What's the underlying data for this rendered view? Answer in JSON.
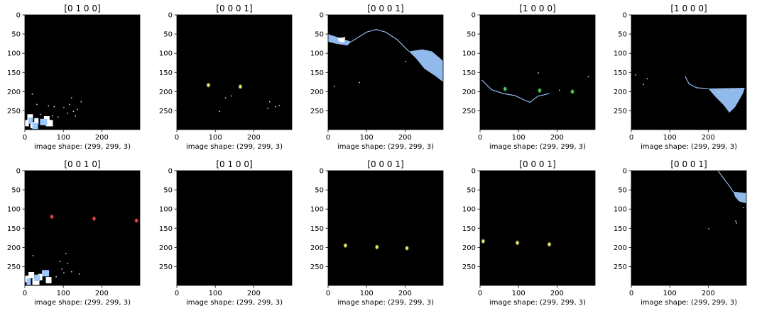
{
  "chart_data": [
    {
      "type": "image",
      "title": "[0 1 0 0]",
      "xlabel": "image shape: (299, 299, 3)",
      "xticks": [
        0,
        100,
        200
      ],
      "yticks": [
        0,
        50,
        100,
        150,
        200,
        250
      ],
      "xlim": [
        0,
        299
      ],
      "ylim": [
        299,
        0
      ],
      "background": "#000000",
      "marks": [
        {
          "kind": "blob",
          "color": "#ffffff",
          "points": [
            [
              5,
              285
            ],
            [
              12,
              270
            ],
            [
              20,
              290
            ],
            [
              30,
              280
            ],
            [
              55,
              275
            ],
            [
              60,
              285
            ]
          ]
        },
        {
          "kind": "blob",
          "color": "#9ec9ff",
          "points": [
            [
              15,
              278
            ],
            [
              25,
              292
            ],
            [
              45,
              282
            ]
          ]
        },
        {
          "kind": "speck",
          "color": "#cfe3ff",
          "points": [
            [
              100,
              240
            ],
            [
              110,
              255
            ],
            [
              115,
              232
            ],
            [
              125,
              250
            ],
            [
              135,
              245
            ],
            [
              145,
              225
            ],
            [
              120,
              215
            ],
            [
              85,
              265
            ],
            [
              70,
              262
            ],
            [
              30,
              232
            ],
            [
              40,
              258
            ],
            [
              60,
              236
            ],
            [
              130,
              262
            ],
            [
              18,
              205
            ],
            [
              75,
              238
            ]
          ]
        }
      ]
    },
    {
      "type": "image",
      "title": "[0 0 0 1]",
      "xlabel": "image shape: (299, 299, 3)",
      "xticks": [
        0,
        100,
        200
      ],
      "yticks": [
        0,
        50,
        100,
        150,
        200,
        250
      ],
      "xlim": [
        0,
        299
      ],
      "ylim": [
        299,
        0
      ],
      "background": "#000000",
      "marks": [
        {
          "kind": "dot",
          "color": "#f5f06a",
          "points": [
            [
              82,
              183
            ],
            [
              165,
              187
            ]
          ]
        },
        {
          "kind": "speck",
          "color": "#cfe3ff",
          "points": [
            [
              110,
              250
            ],
            [
              140,
              210
            ],
            [
              240,
              225
            ],
            [
              255,
              238
            ],
            [
              265,
              235
            ],
            [
              235,
              242
            ],
            [
              125,
              215
            ]
          ]
        }
      ]
    },
    {
      "type": "image",
      "title": "[0 0 0 1]",
      "xlabel": "image shape: (299, 299, 3)",
      "xticks": [
        0,
        100,
        200
      ],
      "yticks": [
        0,
        50,
        100,
        150,
        200,
        250
      ],
      "xlim": [
        0,
        299
      ],
      "ylim": [
        299,
        0
      ],
      "background": "#000000",
      "marks": [
        {
          "kind": "region",
          "color": "#9ec9ff",
          "points": [
            [
              0,
              50
            ],
            [
              30,
              60
            ],
            [
              60,
              70
            ],
            [
              50,
              80
            ],
            [
              20,
              75
            ],
            [
              0,
              70
            ]
          ]
        },
        {
          "kind": "region",
          "color": "#9ec9ff",
          "points": [
            [
              210,
              95
            ],
            [
              245,
              90
            ],
            [
              270,
              95
            ],
            [
              299,
              120
            ],
            [
              299,
              175
            ],
            [
              280,
              160
            ],
            [
              250,
              140
            ],
            [
              230,
              115
            ]
          ]
        },
        {
          "kind": "edge",
          "color": "#9ec9ff",
          "points": [
            [
              60,
              70
            ],
            [
              100,
              45
            ],
            [
              125,
              38
            ],
            [
              150,
              45
            ],
            [
              180,
              65
            ],
            [
              210,
              95
            ]
          ]
        },
        {
          "kind": "region",
          "color": "#ffffff",
          "points": [
            [
              25,
              60
            ],
            [
              45,
              58
            ],
            [
              42,
              72
            ],
            [
              28,
              70
            ]
          ]
        },
        {
          "kind": "speck",
          "color": "#cfe3ff",
          "points": [
            [
              15,
              185
            ],
            [
              80,
              175
            ],
            [
              200,
              120
            ]
          ]
        }
      ]
    },
    {
      "type": "image",
      "title": "[1 0 0 0]",
      "xlabel": "image shape: (299, 299, 3)",
      "xticks": [
        0,
        100,
        200
      ],
      "yticks": [
        0,
        50,
        100,
        150,
        200,
        250
      ],
      "xlim": [
        0,
        299
      ],
      "ylim": [
        299,
        0
      ],
      "background": "#000000",
      "marks": [
        {
          "kind": "edge",
          "color": "#9ec9ff",
          "points": [
            [
              5,
              170
            ],
            [
              30,
              195
            ],
            [
              60,
              205
            ],
            [
              90,
              210
            ],
            [
              115,
              222
            ],
            [
              130,
              228
            ],
            [
              150,
              212
            ],
            [
              180,
              205
            ]
          ]
        },
        {
          "kind": "dot",
          "color": "#4ddb55",
          "points": [
            [
              65,
              193
            ],
            [
              155,
              197
            ],
            [
              240,
              200
            ]
          ]
        },
        {
          "kind": "speck",
          "color": "#cfe3ff",
          "points": [
            [
              150,
              150
            ],
            [
              280,
              160
            ],
            [
              205,
              195
            ]
          ]
        }
      ]
    },
    {
      "type": "image",
      "title": "[1 0 0 0]",
      "xlabel": "image shape: (299, 299, 3)",
      "xticks": [
        0,
        100,
        200
      ],
      "yticks": [
        0,
        50,
        100,
        150,
        200,
        250
      ],
      "xlim": [
        0,
        299
      ],
      "ylim": [
        299,
        0
      ],
      "background": "#000000",
      "marks": [
        {
          "kind": "region",
          "color": "#9ec9ff",
          "points": [
            [
              200,
              192
            ],
            [
              295,
              190
            ],
            [
              290,
              205
            ],
            [
              270,
              240
            ],
            [
              255,
              255
            ],
            [
              240,
              235
            ],
            [
              220,
              215
            ]
          ]
        },
        {
          "kind": "edge",
          "color": "#9ec9ff",
          "points": [
            [
              140,
              160
            ],
            [
              150,
              180
            ],
            [
              170,
              190
            ],
            [
              200,
              192
            ]
          ]
        },
        {
          "kind": "speck",
          "color": "#cfe3ff",
          "points": [
            [
              10,
              155
            ],
            [
              30,
              180
            ],
            [
              40,
              165
            ],
            [
              225,
              200
            ],
            [
              260,
              195
            ]
          ]
        }
      ]
    },
    {
      "type": "image",
      "title": "[0 0 1 0]",
      "xlabel": "image shape: (299, 299, 3)",
      "xticks": [
        0,
        100,
        200
      ],
      "yticks": [
        0,
        50,
        100,
        150,
        200,
        250
      ],
      "xlim": [
        0,
        299
      ],
      "ylim": [
        299,
        0
      ],
      "background": "#000000",
      "marks": [
        {
          "kind": "dot",
          "color": "#f0464a",
          "points": [
            [
              70,
              120
            ],
            [
              180,
              125
            ],
            [
              290,
              130
            ]
          ]
        },
        {
          "kind": "blob",
          "color": "#ffffff",
          "points": [
            [
              5,
              285
            ],
            [
              15,
              275
            ],
            [
              25,
              292
            ],
            [
              40,
              280
            ],
            [
              60,
              288
            ]
          ]
        },
        {
          "kind": "blob",
          "color": "#9ec9ff",
          "points": [
            [
              10,
              292
            ],
            [
              30,
              282
            ],
            [
              50,
              270
            ]
          ]
        },
        {
          "kind": "speck",
          "color": "#cfe3ff",
          "points": [
            [
              95,
              255
            ],
            [
              100,
              265
            ],
            [
              110,
              240
            ],
            [
              90,
              235
            ],
            [
              120,
              262
            ],
            [
              140,
              268
            ],
            [
              105,
              215
            ],
            [
              80,
              275
            ],
            [
              20,
              220
            ]
          ]
        }
      ]
    },
    {
      "type": "image",
      "title": "[0 1 0 0]",
      "xlabel": "image shape: (299, 299, 3)",
      "xticks": [
        0,
        100,
        200
      ],
      "yticks": [
        0,
        50,
        100,
        150,
        200,
        250
      ],
      "xlim": [
        0,
        299
      ],
      "ylim": [
        299,
        0
      ],
      "background": "#000000",
      "marks": []
    },
    {
      "type": "image",
      "title": "[0 0 0 1]",
      "xlabel": "image shape: (299, 299, 3)",
      "xticks": [
        0,
        100,
        200
      ],
      "yticks": [
        0,
        50,
        100,
        150,
        200,
        250
      ],
      "xlim": [
        0,
        299
      ],
      "ylim": [
        299,
        0
      ],
      "background": "#000000",
      "marks": [
        {
          "kind": "dot",
          "color": "#f5f06a",
          "points": [
            [
              45,
              195
            ],
            [
              127,
              199
            ],
            [
              205,
              202
            ]
          ]
        }
      ]
    },
    {
      "type": "image",
      "title": "[0 0 0 1]",
      "xlabel": "image shape: (299, 299, 3)",
      "xticks": [
        0,
        100,
        200
      ],
      "yticks": [
        0,
        50,
        100,
        150,
        200,
        250
      ],
      "xlim": [
        0,
        299
      ],
      "ylim": [
        299,
        0
      ],
      "background": "#000000",
      "marks": [
        {
          "kind": "dot",
          "color": "#f5f06a",
          "points": [
            [
              8,
              184
            ],
            [
              97,
              188
            ],
            [
              180,
              192
            ]
          ]
        }
      ]
    },
    {
      "type": "image",
      "title": "[0 0 0 1]",
      "xlabel": "image shape: (299, 299, 3)",
      "xticks": [
        0,
        100,
        200
      ],
      "yticks": [
        0,
        50,
        100,
        150,
        200,
        250
      ],
      "xlim": [
        0,
        299
      ],
      "ylim": [
        299,
        0
      ],
      "background": "#000000",
      "marks": [
        {
          "kind": "region",
          "color": "#9ec9ff",
          "points": [
            [
              265,
              55
            ],
            [
              299,
              58
            ],
            [
              299,
              85
            ],
            [
              280,
              80
            ],
            [
              270,
              68
            ]
          ]
        },
        {
          "kind": "edge",
          "color": "#9ec9ff",
          "points": [
            [
              225,
              0
            ],
            [
              240,
              20
            ],
            [
              255,
              40
            ],
            [
              265,
              55
            ]
          ]
        },
        {
          "kind": "speck",
          "color": "#cfe3ff",
          "points": [
            [
              200,
              150
            ],
            [
              270,
              130
            ],
            [
              272,
              135
            ],
            [
              290,
              95
            ]
          ]
        }
      ]
    }
  ]
}
